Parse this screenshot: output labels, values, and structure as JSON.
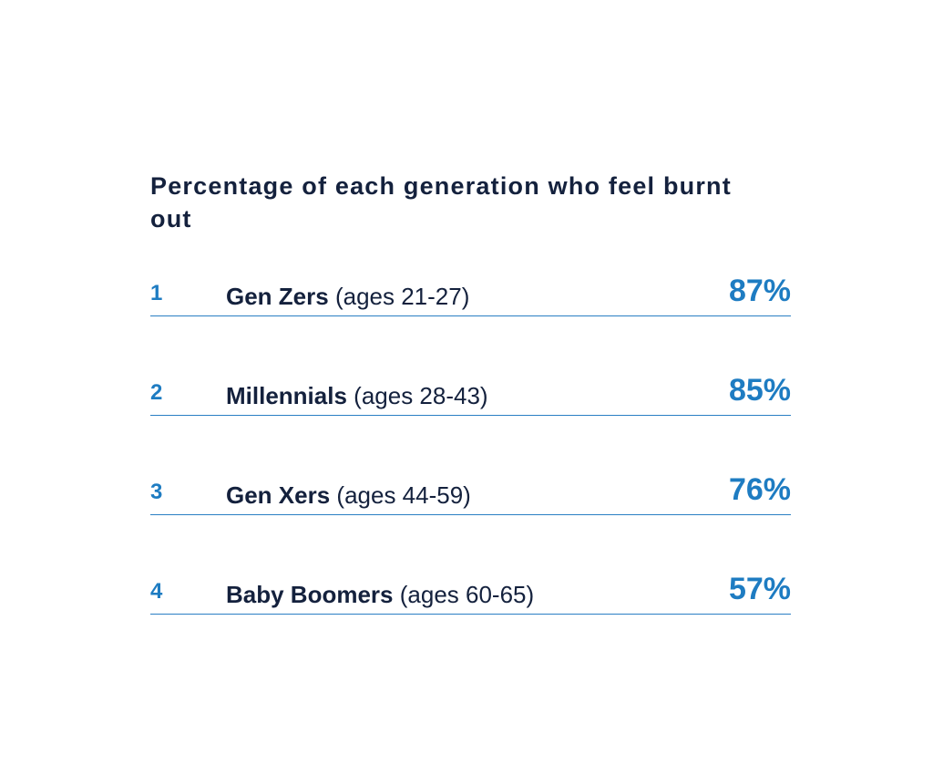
{
  "title": "Percentage of each generation who feel burnt out",
  "rows": [
    {
      "rank": "1",
      "name": "Gen Zers",
      "ages": "(ages 21-27)",
      "value": "87%"
    },
    {
      "rank": "2",
      "name": "Millennials",
      "ages": "(ages 28-43)",
      "value": "85%"
    },
    {
      "rank": "3",
      "name": "Gen Xers",
      "ages": "(ages 44-59)",
      "value": "76%"
    },
    {
      "rank": "4",
      "name": "Baby Boomers",
      "ages": "(ages 60-65)",
      "value": "57%"
    }
  ]
}
